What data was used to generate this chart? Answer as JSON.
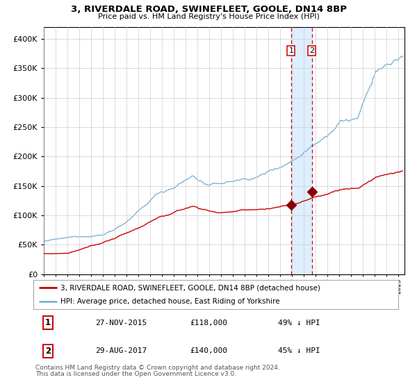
{
  "title": "3, RIVERDALE ROAD, SWINEFLEET, GOOLE, DN14 8BP",
  "subtitle": "Price paid vs. HM Land Registry's House Price Index (HPI)",
  "legend_line1": "3, RIVERDALE ROAD, SWINEFLEET, GOOLE, DN14 8BP (detached house)",
  "legend_line2": "HPI: Average price, detached house, East Riding of Yorkshire",
  "footnote1": "Contains HM Land Registry data © Crown copyright and database right 2024.",
  "footnote2": "This data is licensed under the Open Government Licence v3.0.",
  "transactions": [
    {
      "label": "1",
      "date": "27-NOV-2015",
      "price": 118000,
      "price_str": "£118,000",
      "pct": "49% ↓ HPI"
    },
    {
      "label": "2",
      "date": "29-AUG-2017",
      "price": 140000,
      "price_str": "£140,000",
      "pct": "45% ↓ HPI"
    }
  ],
  "t1_x": 2015.917,
  "t2_x": 2017.667,
  "hpi_color": "#7ab4d8",
  "price_color": "#cc0000",
  "marker_color": "#8b0000",
  "vspan_color": "#ddeeff",
  "grid_color": "#cccccc",
  "background_color": "#ffffff",
  "xlim_start": 1995.0,
  "xlim_end": 2025.5,
  "ylim_min": 0,
  "ylim_max": 420000
}
